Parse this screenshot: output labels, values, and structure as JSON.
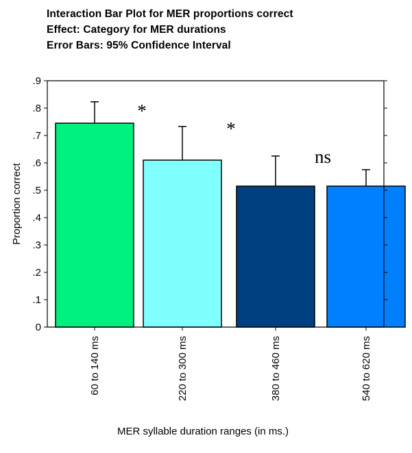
{
  "header": {
    "title_line1": "Interaction Bar Plot for MER proportions correct",
    "title_line2": "Effect: Category for MER durations",
    "title_line3": "Error Bars: 95% Confidence Interval"
  },
  "chart_data": {
    "type": "bar",
    "title": "Interaction Bar Plot for MER proportions correct",
    "subtitle": "Effect: Category for MER durations",
    "note": "Error Bars: 95% Confidence Interval",
    "categories": [
      "60 to 140 ms",
      "220 to 300 ms",
      "380 to 460 ms",
      "540 to 620 ms"
    ],
    "values": [
      0.745,
      0.61,
      0.515,
      0.515
    ],
    "error_upper": [
      0.823,
      0.733,
      0.625,
      0.575
    ],
    "bar_colors": [
      "#00f080",
      "#80ffff",
      "#004080",
      "#0080ff"
    ],
    "annotations": [
      "*",
      "*",
      "ns",
      ""
    ],
    "xlabel": "MER syllable duration ranges (in ms.)",
    "ylabel": "Proportion correct",
    "ylim": [
      0,
      0.9
    ],
    "yticks": [
      0,
      0.1,
      0.2,
      0.3,
      0.4,
      0.5,
      0.6,
      0.7,
      0.8,
      0.9
    ],
    "ytick_labels": [
      "0",
      ".1",
      ".2",
      ".3",
      ".4",
      ".5",
      ".6",
      ".7",
      ".8",
      ".9"
    ],
    "grid": false,
    "legend": "none"
  }
}
